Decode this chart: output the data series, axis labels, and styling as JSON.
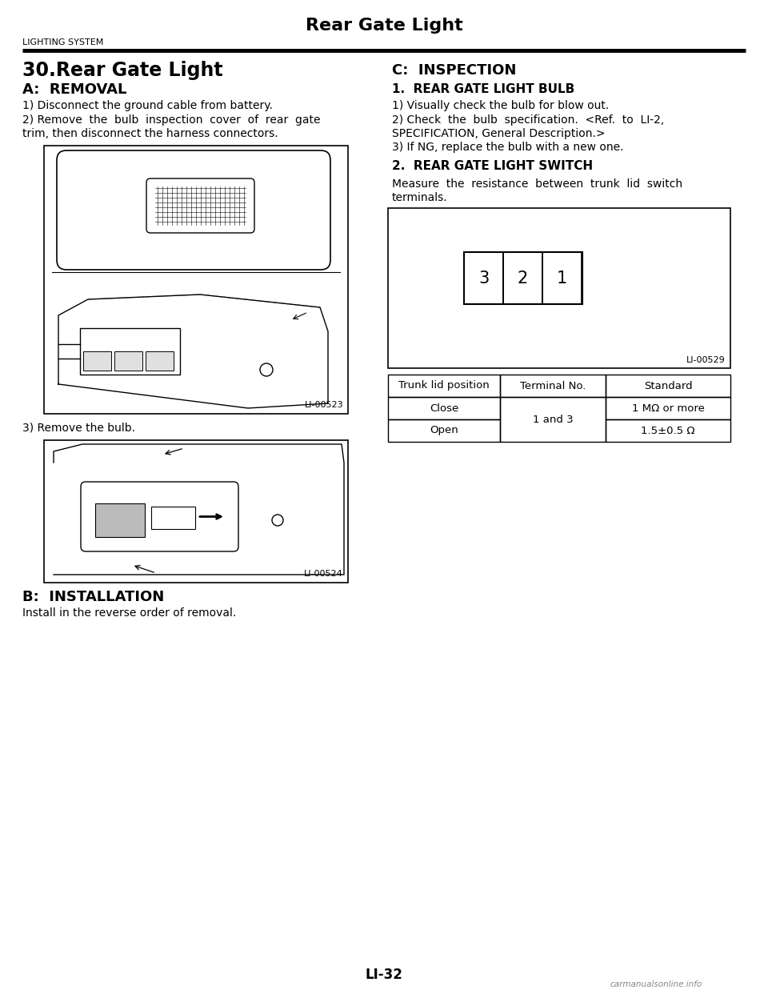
{
  "page_title": "Rear Gate Light",
  "header_left": "LIGHTING SYSTEM",
  "section_main": "30.Rear Gate Light",
  "section_a": "A:  REMOVAL",
  "text_a1": "1) Disconnect the ground cable from battery.",
  "text_a2_line1": "2) Remove  the  bulb  inspection  cover  of  rear  gate",
  "text_a2_line2": "trim, then disconnect the harness connectors.",
  "fig1_label": "LI-00523",
  "text_a3": "3) Remove the bulb.",
  "fig2_label": "LI-00524",
  "section_b": "B:  INSTALLATION",
  "text_b1": "Install in the reverse order of removal.",
  "section_c": "C:  INSPECTION",
  "section_c1": "1.  REAR GATE LIGHT BULB",
  "text_c1_1": "1) Visually check the bulb for blow out.",
  "text_c1_2a": "2) Check  the  bulb  specification.  <Ref.  to  LI-2,",
  "text_c1_2b": "SPECIFICATION, General Description.>",
  "text_c1_3": "3) If NG, replace the bulb with a new one.",
  "section_c2": "2.  REAR GATE LIGHT SWITCH",
  "text_c2_1a": "Measure  the  resistance  between  trunk  lid  switch",
  "text_c2_1b": "terminals.",
  "fig3_label": "LI-00529",
  "table_headers": [
    "Trunk lid position",
    "Terminal No.",
    "Standard"
  ],
  "table_row1": [
    "Close",
    "1 and 3",
    "1 MΩ or more"
  ],
  "table_row2": [
    "Open",
    "1 and 3",
    "1.5±0.5 Ω"
  ],
  "page_number": "LI-32",
  "watermark": "carmanualsonline.info",
  "bg_color": "#ffffff",
  "text_color": "#000000"
}
